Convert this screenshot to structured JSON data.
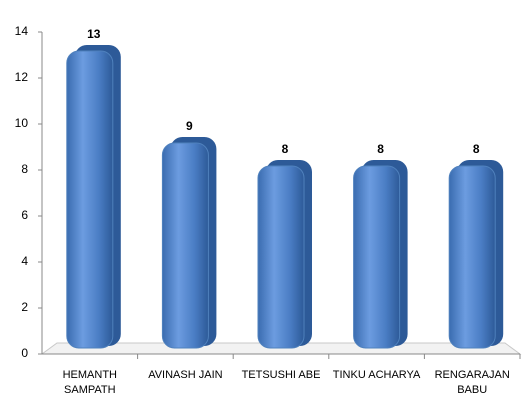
{
  "chart_data": {
    "type": "bar",
    "categories": [
      "HEMANTH SAMPATH",
      "AVINASH JAIN",
      "TETSUSHI  ABE",
      "TINKU ACHARYA",
      "RENGARAJAN BABU"
    ],
    "values": [
      13,
      9,
      8,
      8,
      8
    ],
    "color": "#4f81bd",
    "ylim": [
      0,
      14
    ],
    "yticks": [
      0,
      2,
      4,
      6,
      8,
      10,
      12,
      14
    ]
  }
}
